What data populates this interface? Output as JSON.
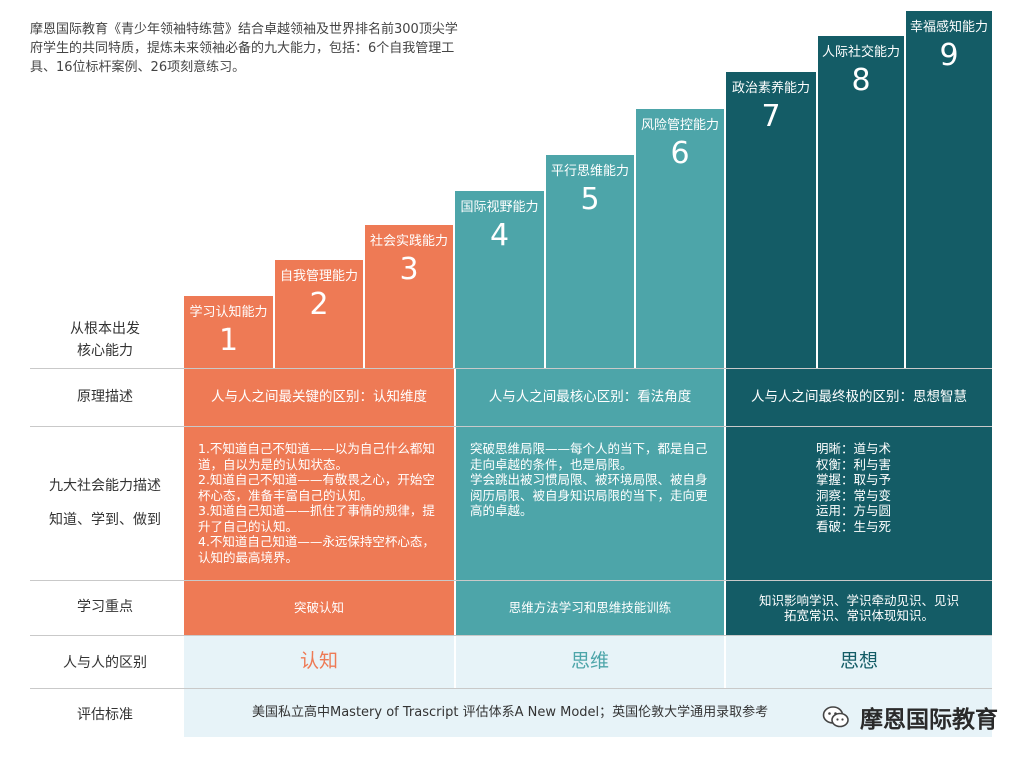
{
  "intro": "摩恩国际教育《青少年领袖特练营》结合卓越领袖及世界排名前300顶尖学府学生的共同特质，提炼未来领袖必备的九大能力，包括：6个自我管理工具、16位标杆案例、26项刻意练习。",
  "stairs_label": "从根本出发\n核心能力",
  "abilities": [
    {
      "label": "学习认知能力",
      "num": "1"
    },
    {
      "label": "自我管理能力",
      "num": "2"
    },
    {
      "label": "社会实践能力",
      "num": "3"
    },
    {
      "label": "国际视野能力",
      "num": "4"
    },
    {
      "label": "平行思维能力",
      "num": "5"
    },
    {
      "label": "风险管控能力",
      "num": "6"
    },
    {
      "label": "政治素养能力",
      "num": "7"
    },
    {
      "label": "人际社交能力",
      "num": "8"
    },
    {
      "label": "幸福感知能力",
      "num": "9"
    }
  ],
  "rows": {
    "principle": {
      "label": "原理描述",
      "cells": [
        "人与人之间最关键的区别：认知维度",
        "人与人之间最核心区别：看法角度",
        "人与人之间最终极的区别：思想智慧"
      ]
    },
    "description": {
      "label_line1": "九大社会能力描述",
      "label_line2": "知道、学到、做到",
      "cell1": [
        "1.不知道自己不知道——以为自己什么都知道，自以为是的认知状态。",
        "2.知道自己不知道——有敬畏之心，开始空杯心态，准备丰富自己的认知。",
        "3.知道自己知道——抓住了事情的规律，提升了自己的认知。",
        "4.不知道自己知道——永远保持空杯心态，认知的最高境界。"
      ],
      "cell2": [
        "突破思维局限——每个人的当下，都是自己走向卓越的条件，也是局限。",
        "学会跳出被习惯局限、被环境局限、被自身阅历局限、被自身知识局限的当下，走向更高的卓越。"
      ],
      "cell3": [
        "明晰：道与术",
        "权衡：利与害",
        "掌握：取与予",
        "洞察：常与变",
        "运用：方与圆",
        "看破：生与死"
      ]
    },
    "focus": {
      "label": "学习重点",
      "cells": [
        "突破认知",
        "思维方法学习和思维技能训练",
        "知识影响学识、学识牵动见识、见识拓宽常识、常识体现知识。"
      ]
    },
    "difference": {
      "label": "人与人的区别",
      "cells": [
        "认知",
        "思维",
        "思想"
      ]
    },
    "standard": {
      "label": "评估标准",
      "text": "美国私立高中Mastery of Trascript 评估体系A New Model；英国伦敦大学通用录取参考"
    }
  },
  "watermark": {
    "text": "摩恩国际教育",
    "icon": "wechat-icon"
  },
  "colors": {
    "orange": "#ee7a55",
    "teal": "#4da5a9",
    "dark_teal": "#145c66",
    "light": "#e7f3f8"
  }
}
